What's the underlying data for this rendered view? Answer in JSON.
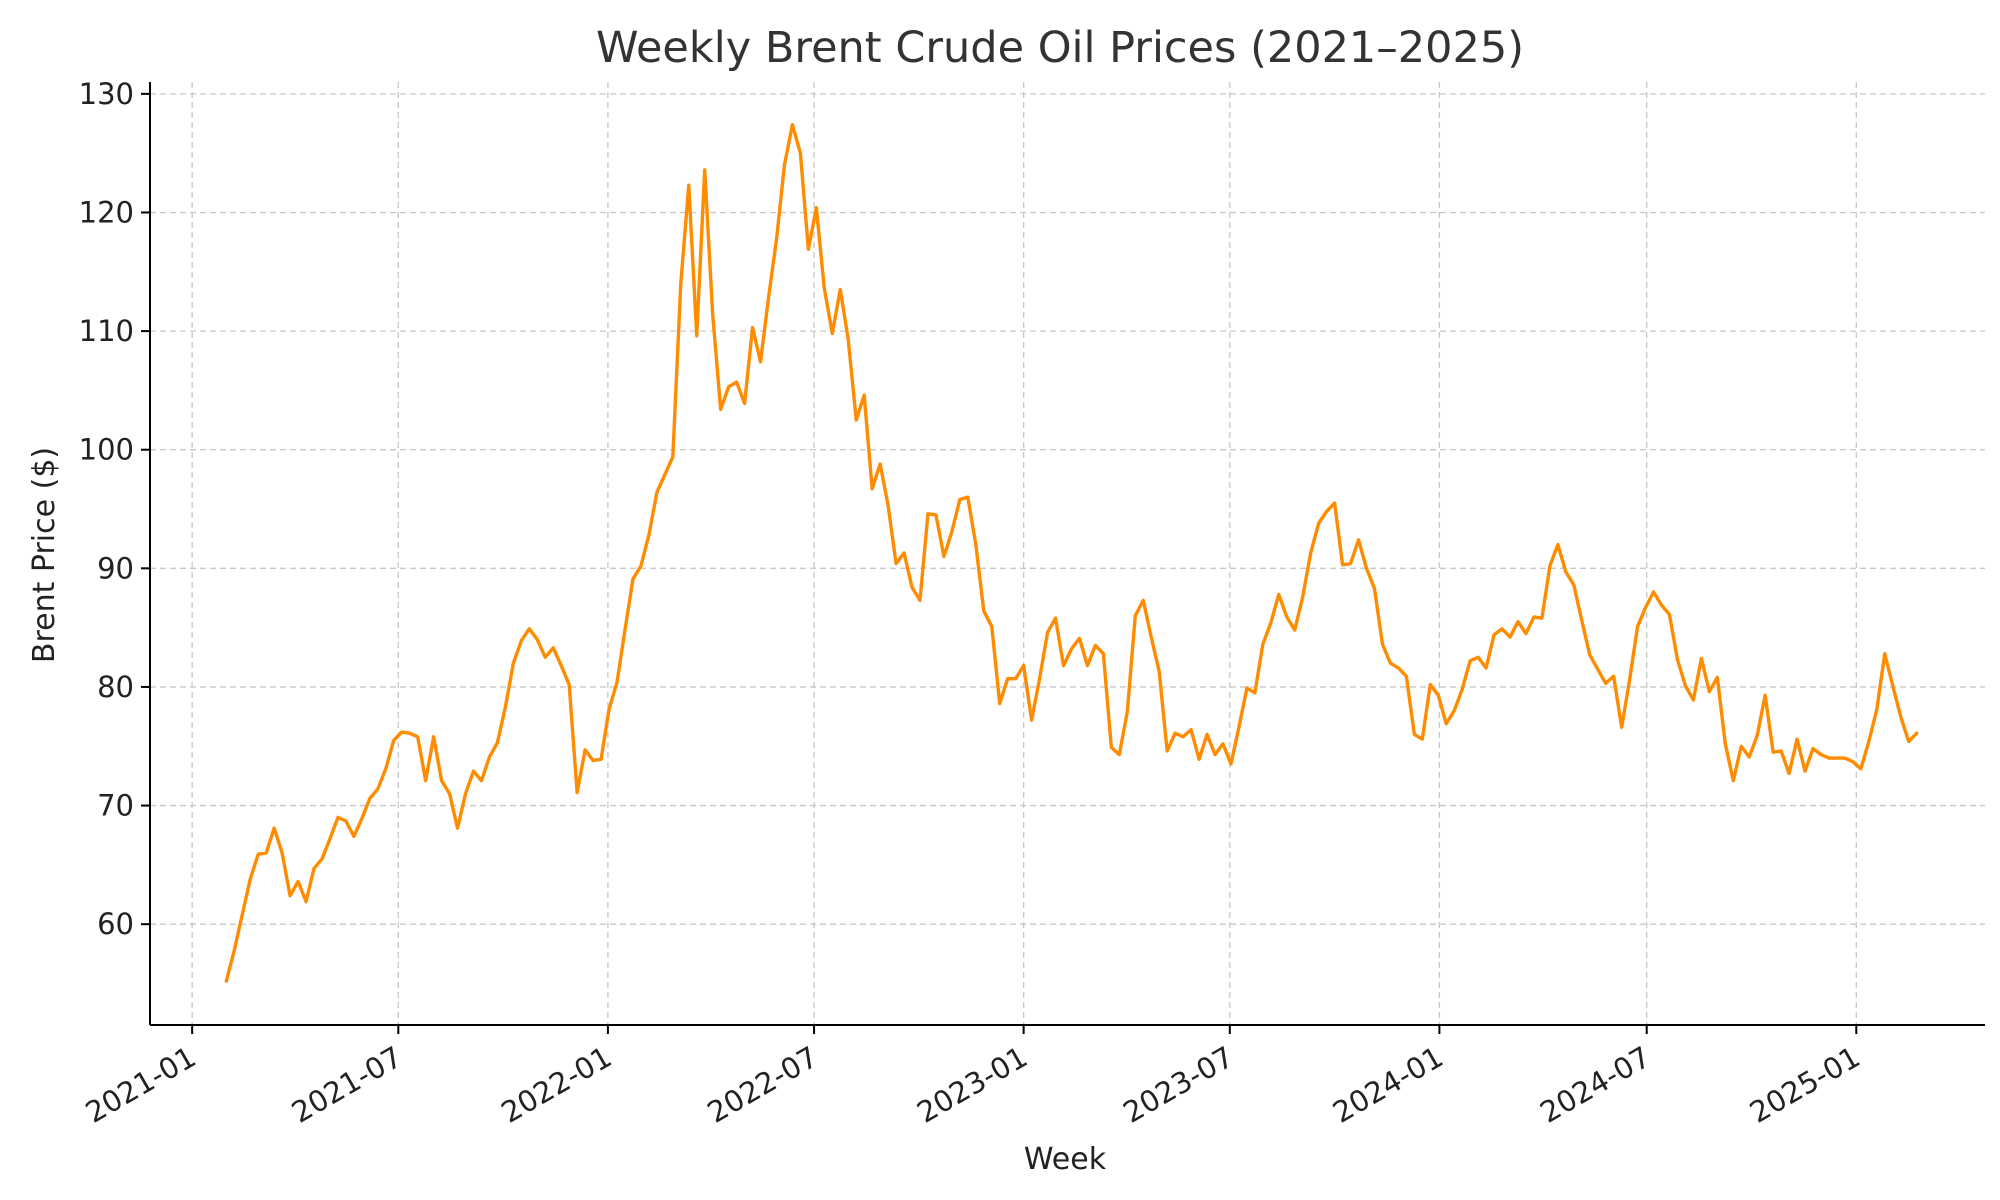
{
  "chart_data": {
    "type": "line",
    "title": "Weekly Brent Crude Oil Prices (2021–2025)",
    "xlabel": "Week",
    "ylabel": "Brent Price ($)",
    "xlim": [
      "2020-11-25",
      "2025-04-24"
    ],
    "ylim": [
      51.5,
      131
    ],
    "grid": true,
    "x_ticks": [
      "2021-01",
      "2021-07",
      "2022-01",
      "2022-07",
      "2023-01",
      "2023-07",
      "2024-01",
      "2024-07",
      "2025-01"
    ],
    "y_ticks": [
      60,
      70,
      80,
      90,
      100,
      110,
      120,
      130
    ],
    "series": [
      {
        "color": "#ff8c00",
        "start": "2021-01-31",
        "frequency": "weekly",
        "values": [
          55.2,
          57.8,
          60.8,
          63.8,
          65.9,
          66.0,
          68.1,
          66.0,
          62.4,
          63.6,
          61.9,
          64.7,
          65.5,
          67.2,
          69.0,
          68.7,
          67.4,
          68.9,
          70.6,
          71.4,
          73.1,
          75.5,
          76.2,
          76.1,
          75.8,
          72.1,
          75.8,
          72.1,
          71.0,
          68.1,
          71.0,
          72.9,
          72.1,
          74.1,
          75.3,
          78.3,
          82.0,
          83.9,
          84.9,
          84.0,
          82.5,
          83.3,
          81.8,
          80.2,
          71.1,
          74.7,
          73.8,
          73.9,
          78.1,
          80.4,
          84.8,
          89.1,
          90.2,
          92.8,
          96.4,
          97.9,
          99.4,
          114.0,
          122.3,
          109.6,
          123.6,
          111.4,
          103.4,
          105.3,
          105.7,
          103.9,
          110.3,
          107.4,
          112.8,
          117.7,
          124.0,
          127.4,
          125.0,
          116.9,
          120.4,
          113.6,
          109.8,
          113.5,
          109.3,
          102.5,
          104.6,
          96.7,
          98.8,
          95.3,
          90.4,
          91.3,
          88.4,
          87.3,
          94.6,
          94.5,
          91.0,
          93.1,
          95.8,
          96.0,
          92.0,
          86.4,
          85.1,
          78.6,
          80.7,
          80.7,
          81.8,
          77.2,
          80.7,
          84.6,
          85.8,
          81.8,
          83.2,
          84.1,
          81.8,
          83.5,
          82.8,
          74.9,
          74.3,
          77.9,
          86.0,
          87.3,
          84.2,
          81.3,
          74.6,
          76.1,
          75.8,
          76.4,
          73.9,
          76.0,
          74.3,
          75.2,
          73.5,
          76.6,
          79.9,
          79.5,
          83.6,
          85.4,
          87.8,
          85.9,
          84.8,
          87.6,
          91.3,
          93.8,
          94.8,
          95.5,
          90.3,
          90.4,
          92.4,
          90.0,
          88.3,
          83.6,
          82.0,
          81.6,
          80.9,
          76.0,
          75.6,
          80.2,
          79.3,
          76.9,
          78.0,
          79.8,
          82.2,
          82.5,
          81.6,
          84.4,
          84.9,
          84.2,
          85.5,
          84.5,
          85.9,
          85.8,
          90.2,
          92.0,
          89.7,
          88.6,
          85.6,
          82.7,
          81.5,
          80.3,
          80.9,
          76.6,
          80.6,
          85.1,
          86.7,
          88.0,
          86.9,
          86.1,
          82.3,
          80.1,
          78.9,
          82.4,
          79.6,
          80.8,
          75.2,
          72.1,
          75.0,
          74.1,
          75.9,
          79.3,
          74.5,
          74.6,
          72.7,
          75.6,
          72.9,
          74.8,
          74.3,
          74.0,
          74.0,
          74.0,
          73.7,
          73.1,
          75.4,
          78.1,
          82.8,
          80.1,
          77.5,
          75.4,
          76.1
        ]
      }
    ]
  }
}
